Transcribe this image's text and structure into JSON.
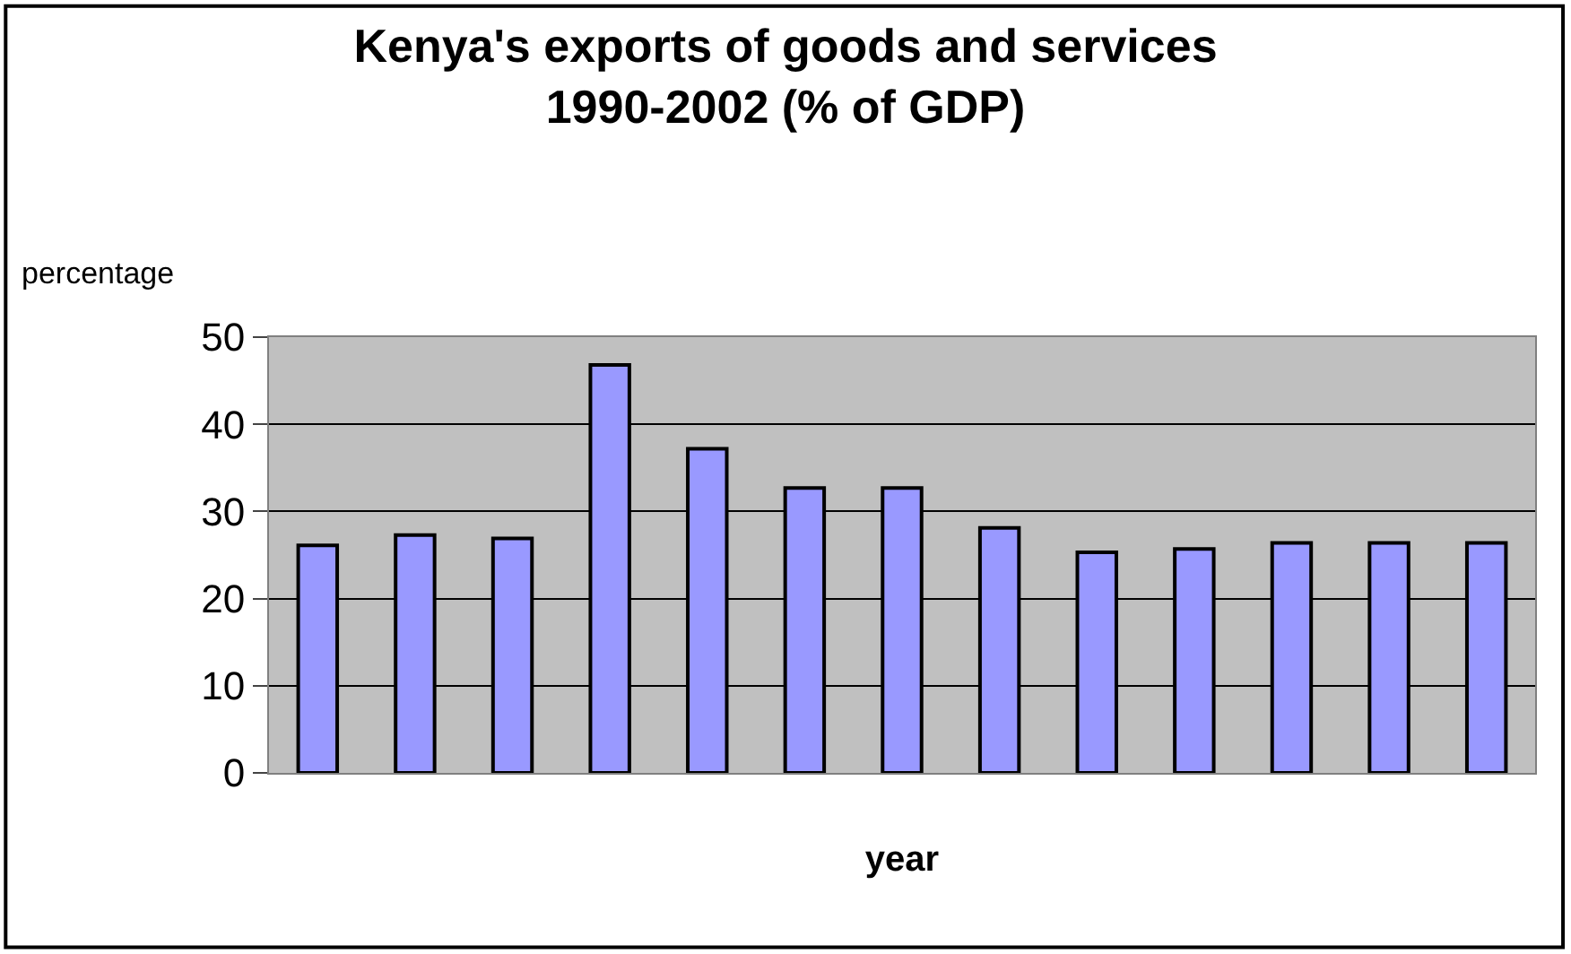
{
  "chart_data": {
    "type": "bar",
    "title": "Kenya's exports of goods and services 1990-2002 (% of GDP)",
    "xlabel": "year",
    "ylabel": "percentage",
    "categories": [
      null,
      null,
      null,
      null,
      null,
      null,
      null,
      null,
      null,
      null,
      null,
      null,
      null
    ],
    "values": [
      26.1,
      27.3,
      26.9,
      46.8,
      37.2,
      32.7,
      32.7,
      28.1,
      25.3,
      25.7,
      26.4,
      26.4,
      26.4
    ],
    "color": "#9999ff",
    "ylim": [
      0,
      50
    ],
    "yticks": [
      0,
      10,
      20,
      30,
      40,
      50
    ],
    "grid": "y",
    "tick_labels": "y"
  }
}
